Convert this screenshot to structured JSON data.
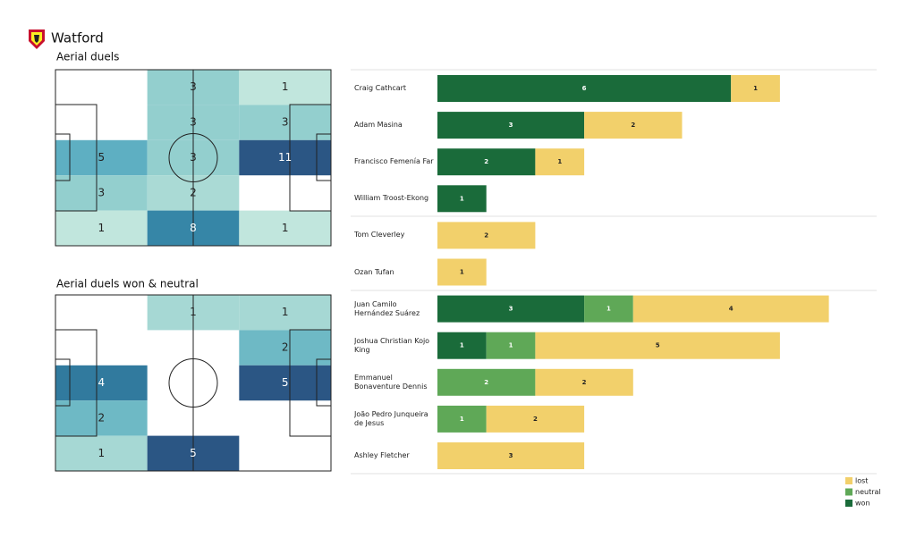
{
  "title": "Watford",
  "chart_data": [
    {
      "type": "heatmap",
      "title": "Aerial duels",
      "values": [
        [
          null,
          3,
          1
        ],
        [
          null,
          3,
          3
        ],
        [
          5,
          3,
          11
        ],
        [
          3,
          2,
          null
        ],
        [
          1,
          8,
          1
        ]
      ]
    },
    {
      "type": "heatmap",
      "title": "Aerial duels won & neutral",
      "values": [
        [
          null,
          1,
          1
        ],
        [
          null,
          null,
          2
        ],
        [
          4,
          null,
          5
        ],
        [
          2,
          null,
          null
        ],
        [
          1,
          5,
          null
        ]
      ]
    },
    {
      "type": "bar",
      "orientation": "horizontal",
      "stacked": true,
      "categories": [
        "Craig Cathcart",
        "Adam Masina",
        "Francisco Femenía Far",
        "William Troost-Ekong",
        "Tom Cleverley",
        "Ozan Tufan",
        "Juan Camilo Hernández Suárez",
        "Joshua Christian Kojo King",
        "Emmanuel Bonaventure Dennis",
        "João Pedro Junqueira de Jesus",
        "Ashley Fletcher"
      ],
      "series": [
        {
          "name": "won",
          "color": "#1a6b3a",
          "values": [
            6,
            3,
            2,
            1,
            0,
            0,
            3,
            1,
            0,
            0,
            0
          ]
        },
        {
          "name": "neutral",
          "color": "#5fa857",
          "values": [
            0,
            0,
            0,
            0,
            0,
            0,
            1,
            1,
            2,
            1,
            0
          ]
        },
        {
          "name": "lost",
          "color": "#f2d06b",
          "values": [
            1,
            2,
            1,
            0,
            2,
            1,
            4,
            5,
            2,
            2,
            3
          ]
        }
      ]
    }
  ]
}
